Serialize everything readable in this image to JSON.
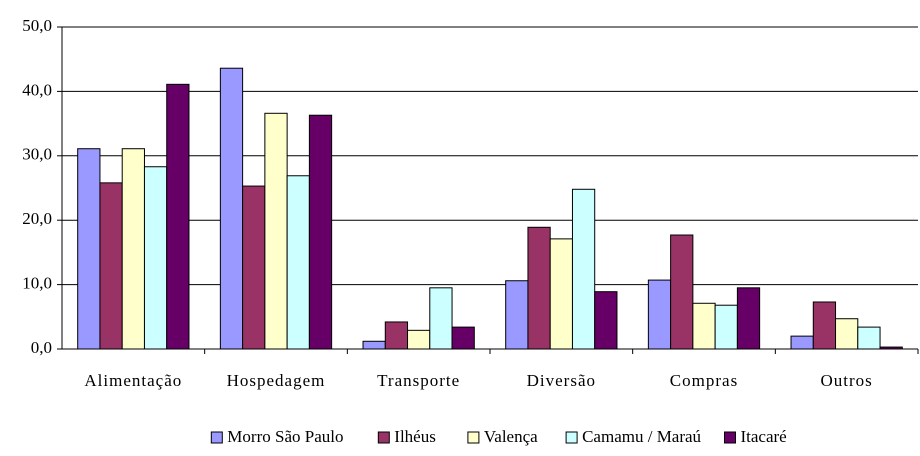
{
  "chart_data": {
    "type": "bar",
    "categories": [
      "Alimentação",
      "Hospedagem",
      "Transporte",
      "Diversão",
      "Compras",
      "Outros"
    ],
    "series": [
      {
        "name": "Morro São Paulo",
        "color": "#9999ff",
        "values": [
          31.1,
          43.6,
          1.2,
          10.6,
          10.7,
          2.0
        ]
      },
      {
        "name": "Ilhéus",
        "color": "#993366",
        "values": [
          25.8,
          25.3,
          4.2,
          18.9,
          17.7,
          7.3
        ]
      },
      {
        "name": "Valença",
        "color": "#ffffcc",
        "values": [
          31.1,
          36.6,
          2.9,
          17.1,
          7.1,
          4.7
        ]
      },
      {
        "name": "Camamu / Maraú",
        "color": "#ccffff",
        "values": [
          28.3,
          26.9,
          9.5,
          24.8,
          6.8,
          3.4
        ]
      },
      {
        "name": "Itacaré",
        "color": "#660066",
        "values": [
          41.1,
          36.3,
          3.4,
          8.9,
          9.5,
          0.3
        ]
      }
    ],
    "ylim": [
      0,
      50
    ],
    "yticks": [
      {
        "value": 0,
        "label": "0,0"
      },
      {
        "value": 10,
        "label": "10,0"
      },
      {
        "value": 20,
        "label": "20,0"
      },
      {
        "value": 30,
        "label": "30,0"
      },
      {
        "value": 40,
        "label": "40,0"
      },
      {
        "value": 50,
        "label": "50,0"
      }
    ],
    "grid": true,
    "legend": "bottom"
  }
}
